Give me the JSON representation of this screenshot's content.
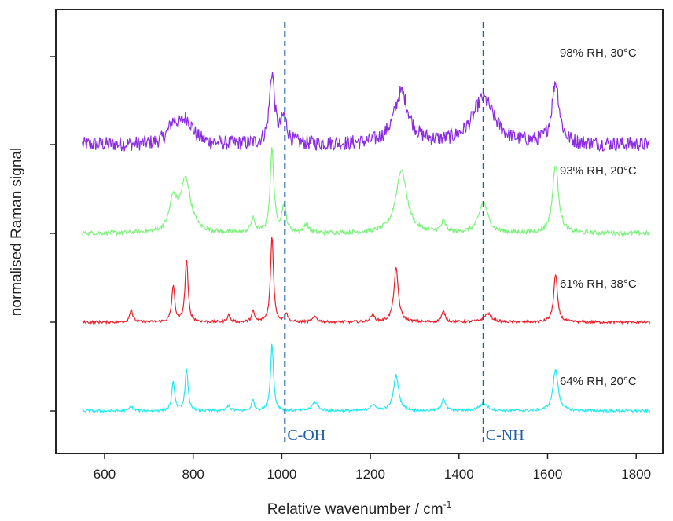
{
  "chart_data": {
    "type": "line",
    "title": "",
    "xlabel": "Relative wavenumber / cm",
    "xlabel_sup": "-1",
    "ylabel": "normalised Raman signal",
    "xlim": [
      490,
      1860
    ],
    "x_ticks": [
      600,
      800,
      1000,
      1200,
      1400,
      1600,
      1800
    ],
    "y_ticks_shown": true,
    "y_tick_labels_shown": false,
    "x_range": [
      550,
      1832
    ],
    "series": [
      {
        "name": "98% RH, 30°C",
        "color": "#8B2BE2",
        "noise": 0.09,
        "peaks": [
          [
            755,
            0.22,
            14
          ],
          [
            785,
            0.28,
            18
          ],
          [
            978,
            0.85,
            7
          ],
          [
            1005,
            0.3,
            8
          ],
          [
            1270,
            0.62,
            20
          ],
          [
            1455,
            0.55,
            30
          ],
          [
            1618,
            0.75,
            10
          ]
        ]
      },
      {
        "name": "93% RH, 20°C",
        "color": "#7CF27C",
        "noise": 0.025,
        "peaks": [
          [
            755,
            0.35,
            10
          ],
          [
            783,
            0.6,
            14
          ],
          [
            935,
            0.15,
            6
          ],
          [
            978,
            0.95,
            5
          ],
          [
            1005,
            0.3,
            6
          ],
          [
            1055,
            0.1,
            6
          ],
          [
            1270,
            0.72,
            15
          ],
          [
            1365,
            0.12,
            6
          ],
          [
            1455,
            0.35,
            12
          ],
          [
            1618,
            0.78,
            8
          ]
        ]
      },
      {
        "name": "61% RH, 38°C",
        "color": "#E8202C",
        "noise": 0.015,
        "peaks": [
          [
            660,
            0.15,
            4
          ],
          [
            755,
            0.42,
            4
          ],
          [
            785,
            0.72,
            4
          ],
          [
            880,
            0.08,
            4
          ],
          [
            935,
            0.12,
            4
          ],
          [
            978,
            1.0,
            4
          ],
          [
            1010,
            0.1,
            4
          ],
          [
            1075,
            0.06,
            6
          ],
          [
            1205,
            0.08,
            6
          ],
          [
            1258,
            0.62,
            6
          ],
          [
            1365,
            0.12,
            5
          ],
          [
            1465,
            0.1,
            10
          ],
          [
            1618,
            0.55,
            5
          ]
        ]
      },
      {
        "name": "64% RH, 20°C",
        "color": "#22E8F0",
        "noise": 0.018,
        "peaks": [
          [
            660,
            0.06,
            5
          ],
          [
            755,
            0.4,
            4
          ],
          [
            785,
            0.58,
            4
          ],
          [
            880,
            0.08,
            4
          ],
          [
            935,
            0.15,
            4
          ],
          [
            978,
            0.95,
            4
          ],
          [
            1075,
            0.12,
            8
          ],
          [
            1205,
            0.08,
            8
          ],
          [
            1258,
            0.5,
            7
          ],
          [
            1365,
            0.18,
            5
          ],
          [
            1455,
            0.1,
            12
          ],
          [
            1618,
            0.58,
            7
          ]
        ]
      }
    ],
    "annotations": [
      {
        "label": "C-OH",
        "x": 1007,
        "color": "#1f5fa8",
        "style": "dashed"
      },
      {
        "label": "C-NH",
        "x": 1455,
        "color": "#1f5fa8",
        "style": "dashed"
      }
    ]
  }
}
